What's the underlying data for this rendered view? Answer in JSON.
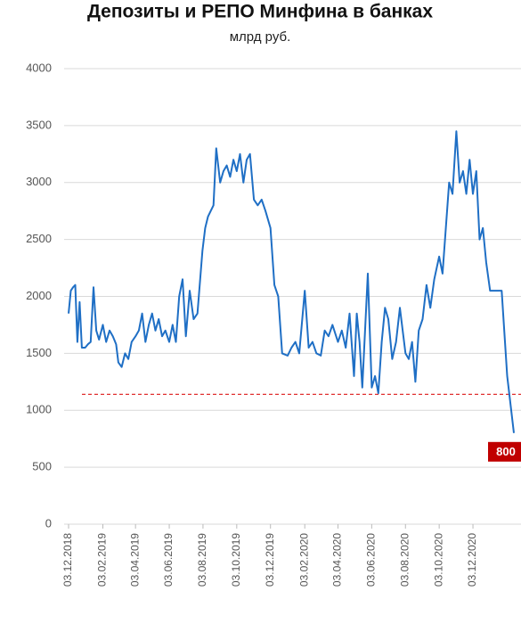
{
  "chart_data": {
    "type": "line",
    "title": "Депозиты и РЕПО Минфина в банках",
    "subtitle": "млрд руб.",
    "x": [
      "03.12.2018",
      "07.12.2018",
      "11.12.2018",
      "15.12.2018",
      "19.12.2018",
      "23.12.2018",
      "27.12.2018",
      "02.01.2019",
      "07.01.2019",
      "12.01.2019",
      "17.01.2019",
      "22.01.2019",
      "27.01.2019",
      "03.02.2019",
      "09.02.2019",
      "15.02.2019",
      "21.02.2019",
      "27.02.2019",
      "03.03.2019",
      "09.03.2019",
      "15.03.2019",
      "21.03.2019",
      "27.03.2019",
      "03.04.2019",
      "09.04.2019",
      "15.04.2019",
      "21.04.2019",
      "27.04.2019",
      "03.05.2019",
      "09.05.2019",
      "15.05.2019",
      "21.05.2019",
      "27.05.2019",
      "03.06.2019",
      "09.06.2019",
      "15.06.2019",
      "21.06.2019",
      "27.06.2019",
      "03.07.2019",
      "10.07.2019",
      "17.07.2019",
      "24.07.2019",
      "02.08.2019",
      "07.08.2019",
      "12.08.2019",
      "17.08.2019",
      "22.08.2019",
      "27.08.2019",
      "03.09.2019",
      "09.09.2019",
      "15.09.2019",
      "21.09.2019",
      "27.09.2019",
      "03.10.2019",
      "09.10.2019",
      "15.10.2019",
      "21.10.2019",
      "27.10.2019",
      "03.11.2019",
      "10.11.2019",
      "17.11.2019",
      "24.11.2019",
      "03.12.2019",
      "10.12.2019",
      "17.12.2019",
      "24.12.2019",
      "03.01.2020",
      "10.01.2020",
      "17.01.2020",
      "24.01.2020",
      "03.02.2020",
      "10.02.2020",
      "17.02.2020",
      "24.02.2020",
      "03.03.2020",
      "10.03.2020",
      "17.03.2020",
      "24.03.2020",
      "03.04.2020",
      "10.04.2020",
      "17.04.2020",
      "24.04.2020",
      "02.05.2020",
      "07.05.2020",
      "12.05.2020",
      "17.05.2020",
      "22.05.2020",
      "27.05.2020",
      "03.06.2020",
      "09.06.2020",
      "15.06.2020",
      "21.06.2020",
      "27.06.2020",
      "03.07.2020",
      "10.07.2020",
      "17.07.2020",
      "24.07.2020",
      "03.08.2020",
      "09.08.2020",
      "15.08.2020",
      "21.08.2020",
      "27.08.2020",
      "03.09.2020",
      "10.09.2020",
      "17.09.2020",
      "24.09.2020",
      "03.10.2020",
      "09.10.2020",
      "15.10.2020",
      "21.10.2020",
      "27.10.2020",
      "03.11.2020",
      "09.11.2020",
      "15.11.2020",
      "21.11.2020",
      "27.11.2020",
      "03.12.2020",
      "09.12.2020",
      "15.12.2020",
      "21.12.2020",
      "27.12.2020",
      "03.01.2021",
      "10.01.2021",
      "17.01.2021",
      "24.01.2021",
      "03.02.2021",
      "15.02.2021"
    ],
    "series": [
      {
        "color": "#1f6fc5",
        "values": [
          1850,
          2050,
          2080,
          2100,
          1600,
          1950,
          1550,
          1550,
          1580,
          1600,
          2080,
          1700,
          1620,
          1750,
          1600,
          1700,
          1650,
          1580,
          1420,
          1380,
          1500,
          1450,
          1600,
          1650,
          1700,
          1850,
          1600,
          1750,
          1850,
          1700,
          1800,
          1650,
          1700,
          1600,
          1750,
          1600,
          2000,
          2150,
          1650,
          2050,
          1800,
          1850,
          2400,
          2600,
          2700,
          2750,
          2800,
          3300,
          3000,
          3100,
          3150,
          3050,
          3200,
          3100,
          3250,
          3000,
          3200,
          3250,
          2850,
          2800,
          2850,
          2750,
          2600,
          2100,
          2000,
          1500,
          1480,
          1550,
          1600,
          1500,
          2050,
          1550,
          1600,
          1500,
          1480,
          1700,
          1650,
          1750,
          1600,
          1700,
          1550,
          1850,
          1300,
          1850,
          1600,
          1200,
          1700,
          2200,
          1200,
          1300,
          1150,
          1600,
          1900,
          1800,
          1450,
          1600,
          1900,
          1500,
          1450,
          1600,
          1250,
          1700,
          1800,
          2100,
          1900,
          2150,
          2350,
          2200,
          2600,
          3000,
          2900,
          3450,
          3000,
          3100,
          2900,
          3200,
          2900,
          3100,
          2500,
          2600,
          2300,
          2050,
          2050,
          2050,
          2050,
          1300,
          800
        ]
      }
    ],
    "xlim": [
      "03.12.2018",
      "15.02.2021"
    ],
    "xticks": [
      "03.12.2018",
      "03.02.2019",
      "03.04.2019",
      "03.06.2019",
      "03.08.2019",
      "03.10.2019",
      "03.12.2019",
      "03.02.2020",
      "03.04.2020",
      "03.06.2020",
      "03.08.2020",
      "03.10.2020",
      "03.12.2020"
    ],
    "ylim": [
      0,
      4000
    ],
    "yticks": [
      0,
      500,
      1000,
      1500,
      2000,
      2500,
      3000,
      3500,
      4000
    ],
    "grid": true,
    "reference_line": {
      "value": 1140,
      "color": "#e03030"
    },
    "last_label_color": "#c00000"
  }
}
